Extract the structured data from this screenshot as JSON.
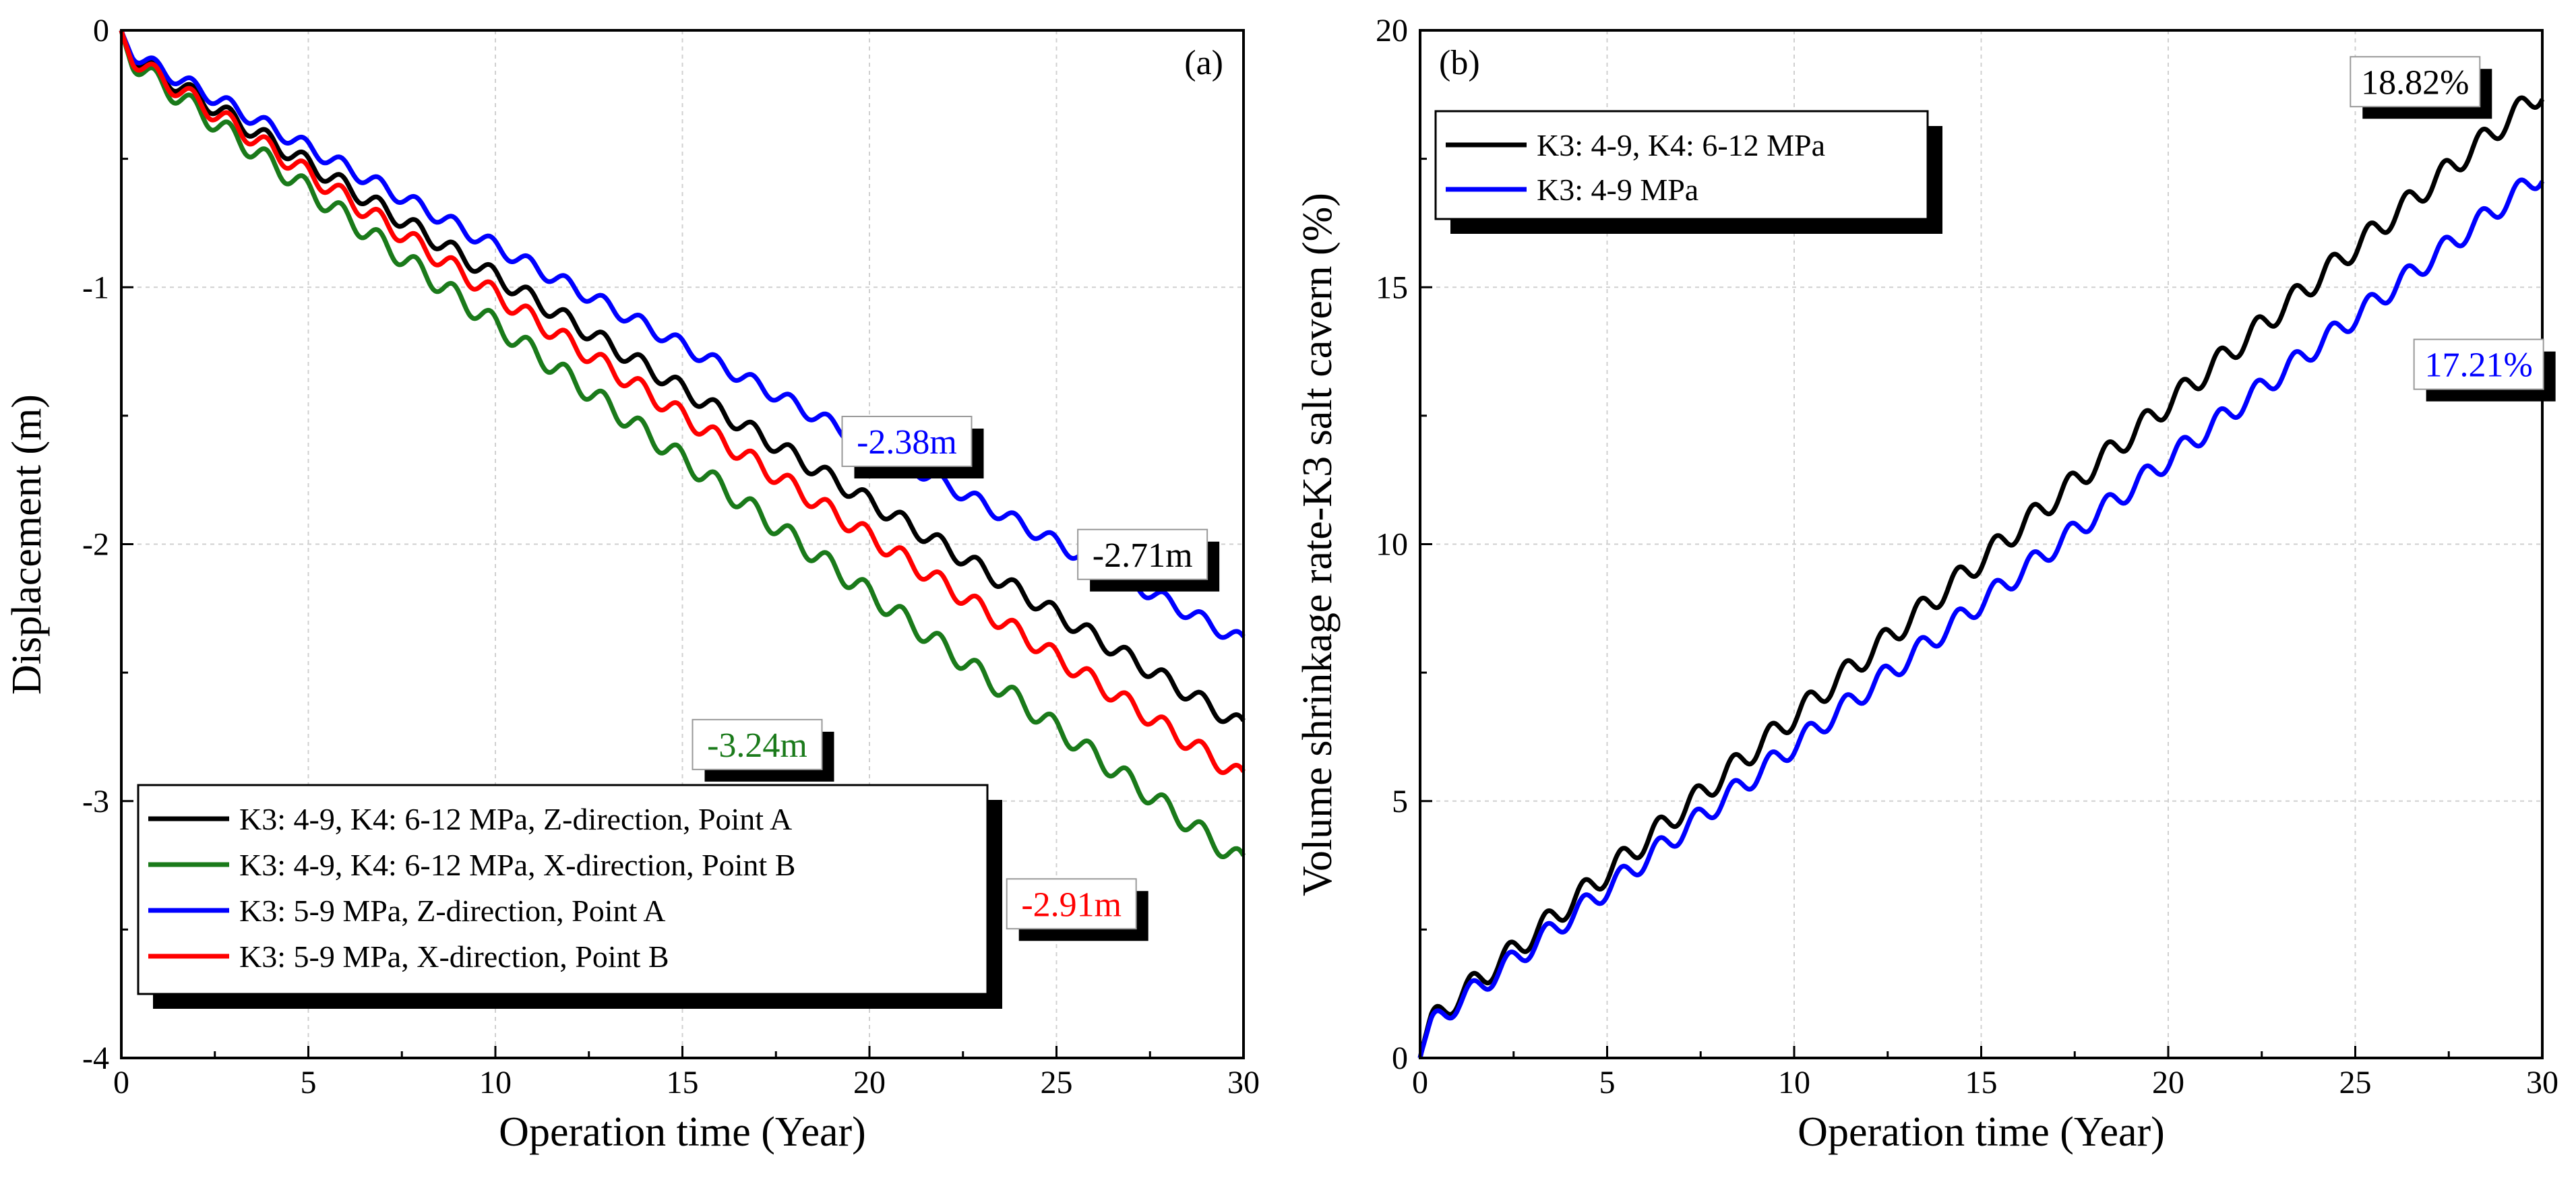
{
  "chart_data": [
    {
      "type": "line",
      "panel_label": "(a)",
      "xlabel": "Operation time (Year)",
      "ylabel": "Displacement (m)",
      "xlim": [
        0,
        30
      ],
      "ylim": [
        -4,
        0
      ],
      "xticks": [
        "0",
        "5",
        "10",
        "15",
        "20",
        "25",
        "30"
      ],
      "yticks": [
        "0",
        "-1",
        "-2",
        "-3",
        "-4"
      ],
      "grid": true,
      "legend_position": "bottom-left",
      "series": [
        {
          "name": "K3: 4-9, K4: 6-12 MPa, Z-direction, Point A",
          "color": "#000000",
          "final": -2.71,
          "x": [
            0,
            30
          ],
          "y": [
            0,
            -2.71
          ]
        },
        {
          "name": "K3: 4-9, K4: 6-12 MPa, X-direction, Point B",
          "color": "#1a7a1a",
          "final": -3.24,
          "x": [
            0,
            30
          ],
          "y": [
            0,
            -3.24
          ]
        },
        {
          "name": "K3: 5-9 MPa, Z-direction, Point A",
          "color": "#0000ff",
          "final": -2.38,
          "x": [
            0,
            30
          ],
          "y": [
            0,
            -2.38
          ]
        },
        {
          "name": "K3: 5-9 MPa, X-direction, Point B",
          "color": "#ff0000",
          "final": -2.91,
          "x": [
            0,
            30
          ],
          "y": [
            0,
            -2.91
          ]
        }
      ],
      "annotations": [
        {
          "text": "-2.38m",
          "color": "#0000ff",
          "x": 21.0,
          "y": -1.6
        },
        {
          "text": "-2.71m",
          "color": "#000000",
          "x": 27.3,
          "y": -2.04
        },
        {
          "text": "-3.24m",
          "color": "#1a7a1a",
          "x": 17.0,
          "y": -2.78
        },
        {
          "text": "-2.91m",
          "color": "#ff0000",
          "x": 25.4,
          "y": -3.4
        }
      ]
    },
    {
      "type": "line",
      "panel_label": "(b)",
      "xlabel": "Operation time (Year)",
      "ylabel": "Volume shrinkage rate-K3 salt cavern (%)",
      "xlim": [
        0,
        30
      ],
      "ylim": [
        0,
        20
      ],
      "xticks": [
        "0",
        "5",
        "10",
        "15",
        "20",
        "25",
        "30"
      ],
      "yticks": [
        "0",
        "5",
        "10",
        "15",
        "20"
      ],
      "grid": true,
      "legend_position": "top-left",
      "series": [
        {
          "name": "K3: 4-9, K4: 6-12 MPa",
          "color": "#000000",
          "final": 18.82,
          "x": [
            0,
            30
          ],
          "y": [
            0,
            18.82
          ]
        },
        {
          "name": "K3: 4-9 MPa",
          "color": "#0000ff",
          "final": 17.21,
          "x": [
            0,
            30
          ],
          "y": [
            0,
            17.21
          ]
        }
      ],
      "annotations": [
        {
          "text": "18.82%",
          "color": "#000000",
          "x": 26.6,
          "y": 19.0
        },
        {
          "text": "17.21%",
          "color": "#0000ff",
          "x": 28.3,
          "y": 13.5
        }
      ]
    }
  ]
}
